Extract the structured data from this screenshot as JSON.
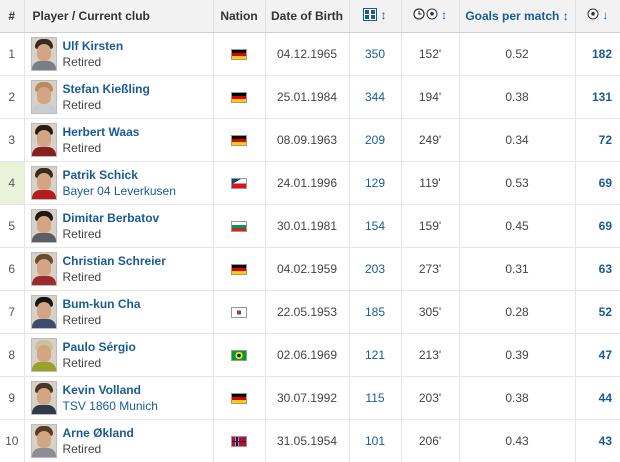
{
  "table": {
    "headers": {
      "rank": "#",
      "player": "Player / Current club",
      "nation": "Nation",
      "dob": "Date of Birth",
      "apps_arrow": "↕",
      "minutes_arrow": "↕",
      "gpm": "Goals per match",
      "gpm_arrow": "↕",
      "goals_arrow": "↓"
    },
    "rows": [
      {
        "rank": "1",
        "name": "Ulf Kirsten",
        "club": "Retired",
        "club_is_link": false,
        "nation": "Germany",
        "dob": "04.12.1965",
        "apps": "350",
        "minutes": "152'",
        "gpm": "0.52",
        "goals": "182",
        "hair": "#3a2a1e",
        "shirt": "#7a7f86",
        "highlight": false
      },
      {
        "rank": "2",
        "name": "Stefan Kießling",
        "club": "Retired",
        "club_is_link": false,
        "nation": "Germany",
        "dob": "25.01.1984",
        "apps": "344",
        "minutes": "194'",
        "gpm": "0.38",
        "goals": "131",
        "hair": "#b88d5a",
        "shirt": "#c9ccd1",
        "highlight": false
      },
      {
        "rank": "3",
        "name": "Herbert Waas",
        "club": "Retired",
        "club_is_link": false,
        "nation": "Germany",
        "dob": "08.09.1963",
        "apps": "209",
        "minutes": "249'",
        "gpm": "0.34",
        "goals": "72",
        "hair": "#2a1a12",
        "shirt": "#8a1f1f",
        "highlight": false
      },
      {
        "rank": "4",
        "name": "Patrik Schick",
        "club": "Bayer 04 Leverkusen",
        "club_is_link": true,
        "nation": "Czech Republic",
        "dob": "24.01.1996",
        "apps": "129",
        "minutes": "119'",
        "gpm": "0.53",
        "goals": "69",
        "hair": "#3b2a20",
        "shirt": "#b31d1d",
        "highlight": true
      },
      {
        "rank": "5",
        "name": "Dimitar Berbatov",
        "club": "Retired",
        "club_is_link": false,
        "nation": "Bulgaria",
        "dob": "30.01.1981",
        "apps": "154",
        "minutes": "159'",
        "gpm": "0.45",
        "goals": "69",
        "hair": "#1f1a16",
        "shirt": "#5b5e63",
        "highlight": false
      },
      {
        "rank": "6",
        "name": "Christian Schreier",
        "club": "Retired",
        "club_is_link": false,
        "nation": "Germany",
        "dob": "04.02.1959",
        "apps": "203",
        "minutes": "273'",
        "gpm": "0.31",
        "goals": "63",
        "hair": "#6b4a2e",
        "shirt": "#9b2a2a",
        "highlight": false
      },
      {
        "rank": "7",
        "name": "Bum-kun Cha",
        "club": "Retired",
        "club_is_link": false,
        "nation": "South Korea",
        "dob": "22.05.1953",
        "apps": "185",
        "minutes": "305'",
        "gpm": "0.28",
        "goals": "52",
        "hair": "#151212",
        "shirt": "#3c4c6a",
        "highlight": false
      },
      {
        "rank": "8",
        "name": "Paulo Sérgio",
        "club": "Retired",
        "club_is_link": false,
        "nation": "Brazil",
        "dob": "02.06.1969",
        "apps": "121",
        "minutes": "213'",
        "gpm": "0.39",
        "goals": "47",
        "hair": "#c8c2a0",
        "shirt": "#9aa12a",
        "highlight": false
      },
      {
        "rank": "9",
        "name": "Kevin Volland",
        "club": "TSV 1860 Munich",
        "club_is_link": true,
        "nation": "Germany",
        "dob": "30.07.1992",
        "apps": "115",
        "minutes": "203'",
        "gpm": "0.38",
        "goals": "44",
        "hair": "#4a3626",
        "shirt": "#2f3a4a",
        "highlight": false
      },
      {
        "rank": "10",
        "name": "Arne Økland",
        "club": "Retired",
        "club_is_link": false,
        "nation": "Norway",
        "dob": "31.05.1954",
        "apps": "101",
        "minutes": "206'",
        "gpm": "0.43",
        "goals": "43",
        "hair": "#5a3a22",
        "shirt": "#8a8f96",
        "highlight": false
      }
    ]
  },
  "colors": {
    "link": "#1a5b94",
    "header_bg": "#f2f2f2",
    "highlight_bg": "#eaf3d9"
  },
  "icons": {
    "appearances": "appearances-icon",
    "minutes": "clock-icon",
    "ball": "football-icon"
  }
}
